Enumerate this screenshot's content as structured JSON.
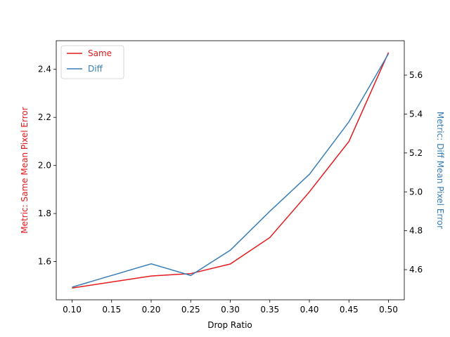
{
  "chart_data": {
    "type": "line",
    "xlabel": "Drop Ratio",
    "ylabel": "Metric: Same Mean Pixel Error",
    "y2label": "Metric: Diff Mean Pixel Error",
    "x": [
      0.1,
      0.2,
      0.25,
      0.3,
      0.35,
      0.4,
      0.45,
      0.5
    ],
    "series": [
      {
        "name": "Same",
        "color": "#e41a1c",
        "values": [
          1.49,
          1.54,
          1.55,
          1.59,
          1.7,
          1.89,
          2.1,
          2.47
        ]
      },
      {
        "name": "Diff",
        "color": "#377eb8",
        "axis": "y2",
        "values": [
          4.51,
          4.63,
          4.57,
          4.7,
          4.9,
          5.09,
          5.36,
          5.71
        ]
      }
    ],
    "xlim": [
      0.08,
      0.52
    ],
    "xticks": [
      {
        "value": 0.1,
        "label": "0.10"
      },
      {
        "value": 0.15,
        "label": "0.15"
      },
      {
        "value": 0.2,
        "label": "0.20"
      },
      {
        "value": 0.25,
        "label": "0.25"
      },
      {
        "value": 0.3,
        "label": "0.30"
      },
      {
        "value": 0.35,
        "label": "0.35"
      },
      {
        "value": 0.4,
        "label": "0.40"
      },
      {
        "value": 0.45,
        "label": "0.45"
      },
      {
        "value": 0.5,
        "label": "0.50"
      }
    ],
    "ylim": [
      1.441,
      2.519
    ],
    "yticks": [
      1.6,
      1.8,
      {
        "value": 2.0,
        "label": "2.0"
      },
      2.2,
      2.4
    ],
    "y2lim": [
      4.445,
      5.777
    ],
    "y2ticks": [
      4.6,
      4.8,
      {
        "value": 5.0,
        "label": "5.0"
      },
      5.2,
      5.4,
      5.6
    ],
    "legend": "upper left"
  }
}
